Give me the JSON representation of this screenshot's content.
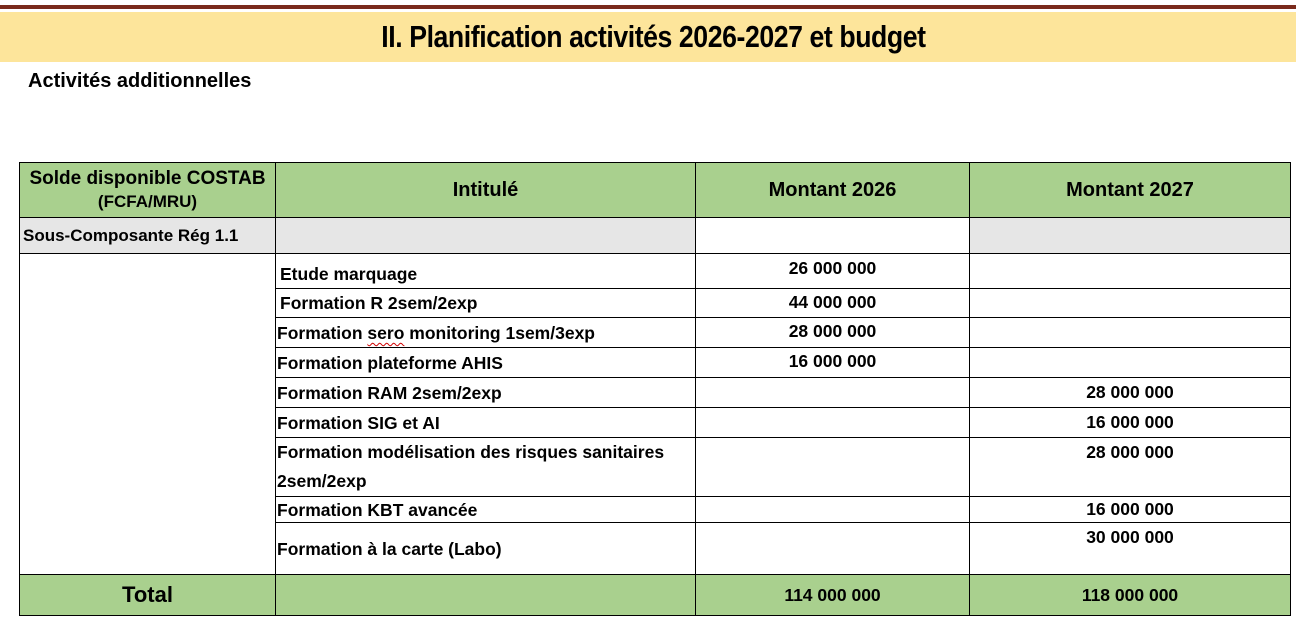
{
  "header": {
    "title": "II. Planification activités 2026-2027 et budget",
    "subtitle": "Activités additionnelles"
  },
  "table": {
    "columns": {
      "col1_line1": "Solde disponible COSTAB",
      "col1_line2": "(FCFA/MRU)",
      "col2": "Intitulé",
      "col3": "Montant 2026",
      "col4": "Montant 2027"
    },
    "subcomponent": "Sous-Composante Rég 1.1",
    "rows": [
      {
        "intitule": "Etude marquage",
        "m2026": "26 000 000",
        "m2027": ""
      },
      {
        "intitule": "Formation R 2sem/2exp",
        "m2026": "44 000 000",
        "m2027": ""
      },
      {
        "intitule_a": "Formation ",
        "intitule_b": "sero",
        "intitule_c": " monitoring 1sem/3exp",
        "m2026": "28 000 000",
        "m2027": ""
      },
      {
        "intitule": "Formation plateforme AHIS",
        "m2026": "16 000 000",
        "m2027": ""
      },
      {
        "intitule": "Formation RAM 2sem/2exp",
        "m2026": "",
        "m2027": "28 000 000"
      },
      {
        "intitule": "Formation SIG et AI",
        "m2026": "",
        "m2027": "16 000 000"
      },
      {
        "intitule": "Formation modélisation des risques sanitaires 2sem/2exp",
        "m2026": "",
        "m2027": "28 000 000"
      },
      {
        "intitule": "Formation KBT avancée",
        "m2026": "",
        "m2027": "16 000 000"
      },
      {
        "intitule": "Formation à la carte (Labo)",
        "m2026": "",
        "m2027": "30 000 000"
      }
    ],
    "total": {
      "label": "Total",
      "m2026": "114 000 000",
      "m2027": "118 000 000"
    }
  },
  "colors": {
    "banner": "#fde59b",
    "header_green": "#a9d08e",
    "subcomponent_grey": "#e6e6e6",
    "top_rule": "#7a2a1c"
  }
}
